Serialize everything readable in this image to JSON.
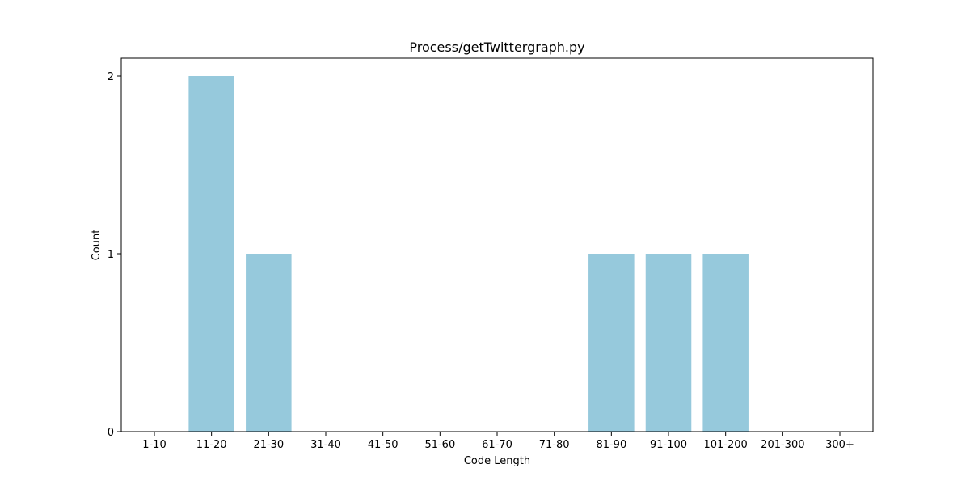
{
  "chart_data": {
    "type": "bar",
    "title": "Process/getTwittergraph.py",
    "xlabel": "Code Length",
    "ylabel": "Count",
    "categories": [
      "1-10",
      "11-20",
      "21-30",
      "31-40",
      "41-50",
      "51-60",
      "61-70",
      "71-80",
      "81-90",
      "91-100",
      "101-200",
      "201-300",
      "300+"
    ],
    "values": [
      0,
      2,
      1,
      0,
      0,
      0,
      0,
      0,
      1,
      1,
      1,
      0,
      0
    ],
    "yticks": [
      0,
      1,
      2
    ],
    "ylim": [
      0,
      2.1
    ],
    "bar_color": "#96c9dc",
    "grid": false
  }
}
